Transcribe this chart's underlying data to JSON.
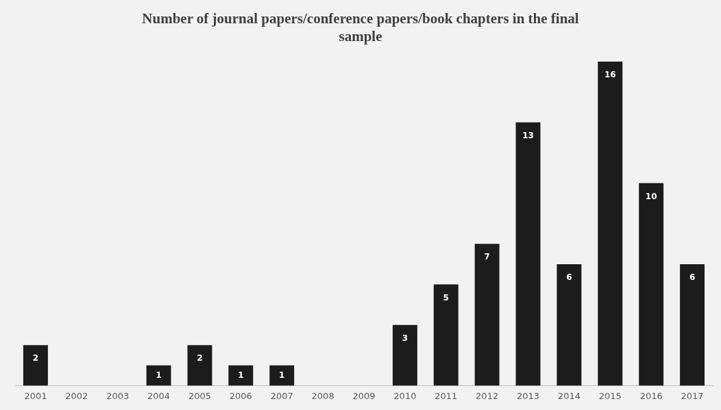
{
  "chart_data": {
    "type": "bar",
    "title": "Number of journal papers/conference papers/book chapters in the final sample",
    "categories": [
      "2001",
      "2002",
      "2003",
      "2004",
      "2005",
      "2006",
      "2007",
      "2008",
      "2009",
      "2010",
      "2011",
      "2012",
      "2013",
      "2014",
      "2015",
      "2016",
      "2017"
    ],
    "values": [
      2,
      0,
      0,
      1,
      2,
      1,
      1,
      0,
      0,
      3,
      5,
      7,
      13,
      6,
      16,
      10,
      6
    ],
    "value_labels": [
      "2",
      null,
      null,
      "1",
      "2",
      "1",
      "1",
      null,
      null,
      "3",
      "5",
      "7",
      "13",
      "6",
      "16",
      "10",
      "6"
    ],
    "color": "#1c1c1c",
    "grid": false,
    "legend": false
  }
}
